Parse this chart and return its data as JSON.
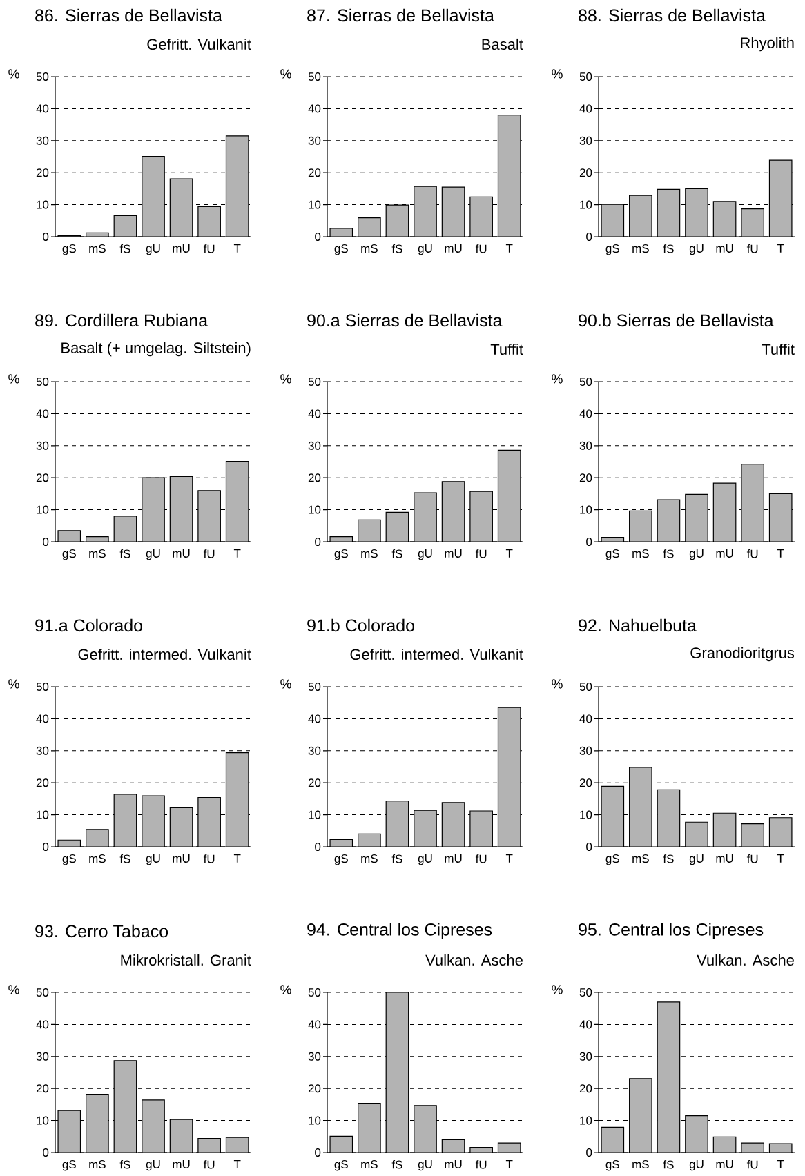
{
  "chart_data": [
    {
      "type": "bar",
      "title": "86. Sierras de Bellavista",
      "subtitle": "Gefritt. Vulkanit",
      "ylabel": "%",
      "categories": [
        "gS",
        "mS",
        "fS",
        "gU",
        "mU",
        "fU",
        "T"
      ],
      "values": [
        0.3,
        1.2,
        6.6,
        25.1,
        18.1,
        9.4,
        31.5
      ],
      "color": "#b3b3b3",
      "ylim": [
        0,
        50
      ],
      "yticks": [
        0,
        10,
        20,
        30,
        40,
        50
      ],
      "grid": "y"
    },
    {
      "type": "bar",
      "title": "87. Sierras de Bellavista",
      "subtitle": "Basalt",
      "ylabel": "%",
      "categories": [
        "gS",
        "mS",
        "fS",
        "gU",
        "mU",
        "fU",
        "T"
      ],
      "values": [
        2.6,
        5.9,
        9.9,
        15.7,
        15.5,
        12.4,
        38.0
      ],
      "color": "#b3b3b3",
      "ylim": [
        0,
        50
      ],
      "yticks": [
        0,
        10,
        20,
        30,
        40,
        50
      ],
      "grid": "y"
    },
    {
      "type": "bar",
      "title": "88. Sierras de Bellavista",
      "subtitle": "Rhyolith",
      "ylabel": "%",
      "categories": [
        "gS",
        "mS",
        "fS",
        "gU",
        "mU",
        "fU",
        "T"
      ],
      "values": [
        10.1,
        12.9,
        14.8,
        15.0,
        11.0,
        8.7,
        23.9
      ],
      "color": "#b3b3b3",
      "ylim": [
        0,
        50
      ],
      "yticks": [
        0,
        10,
        20,
        30,
        40,
        50
      ],
      "grid": "y"
    },
    {
      "type": "bar",
      "title": "89. Cordillera Rubiana",
      "subtitle": "Basalt (+ umgelag. Siltstein)",
      "ylabel": "%",
      "categories": [
        "gS",
        "mS",
        "fS",
        "gU",
        "mU",
        "fU",
        "T"
      ],
      "values": [
        3.5,
        1.6,
        8.0,
        20.0,
        20.4,
        16.0,
        25.1
      ],
      "color": "#b3b3b3",
      "ylim": [
        0,
        50
      ],
      "yticks": [
        0,
        10,
        20,
        30,
        40,
        50
      ],
      "grid": "y"
    },
    {
      "type": "bar",
      "title": "90.a Sierras de Bellavista",
      "subtitle": "Tuffit",
      "ylabel": "%",
      "categories": [
        "gS",
        "mS",
        "fS",
        "gU",
        "mU",
        "fU",
        "T"
      ],
      "values": [
        1.6,
        6.8,
        9.2,
        15.3,
        18.8,
        15.7,
        28.6
      ],
      "color": "#b3b3b3",
      "ylim": [
        0,
        50
      ],
      "yticks": [
        0,
        10,
        20,
        30,
        40,
        50
      ],
      "grid": "y"
    },
    {
      "type": "bar",
      "title": "90.b Sierras de Bellavista",
      "subtitle": "Tuffit",
      "ylabel": "%",
      "categories": [
        "gS",
        "mS",
        "fS",
        "gU",
        "mU",
        "fU",
        "T"
      ],
      "values": [
        1.4,
        9.6,
        13.1,
        14.8,
        18.3,
        24.2,
        15.0
      ],
      "color": "#b3b3b3",
      "ylim": [
        0,
        50
      ],
      "yticks": [
        0,
        10,
        20,
        30,
        40,
        50
      ],
      "grid": "y"
    },
    {
      "type": "bar",
      "title": "91.a Colorado",
      "subtitle": "Gefritt. intermed. Vulkanit",
      "ylabel": "%",
      "categories": [
        "gS",
        "mS",
        "fS",
        "gU",
        "mU",
        "fU",
        "T"
      ],
      "values": [
        2.1,
        5.4,
        16.4,
        15.9,
        12.2,
        15.4,
        29.4
      ],
      "color": "#b3b3b3",
      "ylim": [
        0,
        50
      ],
      "yticks": [
        0,
        10,
        20,
        30,
        40,
        50
      ],
      "grid": "y"
    },
    {
      "type": "bar",
      "title": "91.b Colorado",
      "subtitle": "Gefritt. intermed. Vulkanit",
      "ylabel": "%",
      "categories": [
        "gS",
        "mS",
        "fS",
        "gU",
        "mU",
        "fU",
        "T"
      ],
      "values": [
        2.3,
        4.0,
        14.3,
        11.4,
        13.8,
        11.2,
        43.5
      ],
      "color": "#b3b3b3",
      "ylim": [
        0,
        50
      ],
      "yticks": [
        0,
        10,
        20,
        30,
        40,
        50
      ],
      "grid": "y"
    },
    {
      "type": "bar",
      "title": "92. Nahuelbuta",
      "subtitle": "Granodioritgrus",
      "ylabel": "%",
      "categories": [
        "gS",
        "mS",
        "fS",
        "gU",
        "mU",
        "fU",
        "T"
      ],
      "values": [
        18.9,
        24.8,
        17.8,
        7.7,
        10.5,
        7.2,
        9.1
      ],
      "color": "#b3b3b3",
      "ylim": [
        0,
        50
      ],
      "yticks": [
        0,
        10,
        20,
        30,
        40,
        50
      ],
      "grid": "y"
    },
    {
      "type": "bar",
      "title": "93. Cerro Tabaco",
      "subtitle": "Mikrokristall. Granit",
      "ylabel": "%",
      "categories": [
        "gS",
        "mS",
        "fS",
        "gU",
        "mU",
        "fU",
        "T"
      ],
      "values": [
        13.1,
        18.2,
        28.7,
        16.4,
        10.3,
        4.4,
        4.7
      ],
      "color": "#b3b3b3",
      "ylim": [
        0,
        50
      ],
      "yticks": [
        0,
        10,
        20,
        30,
        40,
        50
      ],
      "grid": "y"
    },
    {
      "type": "bar",
      "title": "94. Central los Cipreses",
      "subtitle": "Vulkan. Asche",
      "ylabel": "%",
      "categories": [
        "gS",
        "mS",
        "fS",
        "gU",
        "mU",
        "fU",
        "T"
      ],
      "values": [
        5.1,
        15.4,
        50.0,
        14.7,
        4.0,
        1.6,
        3.0
      ],
      "color": "#b3b3b3",
      "ylim": [
        0,
        50
      ],
      "yticks": [
        0,
        10,
        20,
        30,
        40,
        50
      ],
      "grid": "y"
    },
    {
      "type": "bar",
      "title": "95. Central los Cipreses",
      "subtitle": "Vulkan. Asche",
      "ylabel": "%",
      "categories": [
        "gS",
        "mS",
        "fS",
        "gU",
        "mU",
        "fU",
        "T"
      ],
      "values": [
        7.9,
        23.1,
        47.0,
        11.5,
        4.9,
        3.0,
        2.8
      ],
      "color": "#b3b3b3",
      "ylim": [
        0,
        50
      ],
      "yticks": [
        0,
        10,
        20,
        30,
        40,
        50
      ],
      "grid": "y"
    }
  ]
}
